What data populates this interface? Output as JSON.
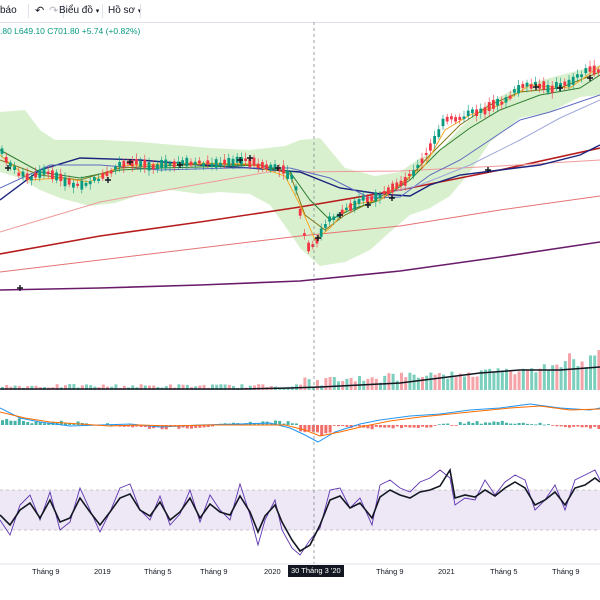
{
  "toolbar": {
    "alert_label": "báo",
    "undo_icon": "undo-icon",
    "redo_icon": "redo-icon",
    "chart_menu_label": "Biểu đồ",
    "profile_menu_label": "Hồ sơ"
  },
  "legend": {
    "ohlc_text": ".80  L649.10  C701.80  +5.74 (+0.82%)"
  },
  "x_axis": {
    "labels": [
      "Tháng 9",
      "2019",
      "Tháng 5",
      "Tháng 9",
      "2020",
      "Tháng 9",
      "2021",
      "Tháng 5",
      "Tháng 9"
    ],
    "crosshair_label": "30 Tháng 3 '20"
  },
  "colors": {
    "up": "#089981",
    "down": "#f23645",
    "bollinger_fill": "#b9e4a5",
    "rsi_band": "#ede7f6",
    "ma_dark_red": "#b71c1c",
    "ma_navy": "#1a237e",
    "ma_purple": "#6a1b6a"
  }
}
